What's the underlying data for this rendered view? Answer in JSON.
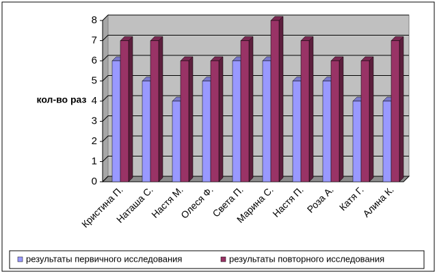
{
  "chart_data": {
    "type": "bar3d",
    "y_label": "кол-во раз",
    "categories": [
      "Кристина П.",
      "Наташа С.",
      "Настя М.",
      "Олеся Ф.",
      "Света П.",
      "Марина С.",
      "Настя П.",
      "Роза А.",
      "Катя Г.",
      "Алина К."
    ],
    "series": [
      {
        "name": "результаты первичного исследования",
        "color": "#9999ff",
        "values": [
          6,
          5,
          4,
          5,
          6,
          6,
          5,
          5,
          4,
          4
        ]
      },
      {
        "name": "результаты повторного исследования",
        "color": "#993366",
        "values": [
          7,
          7,
          6,
          6,
          7,
          8,
          7,
          6,
          6,
          7
        ]
      }
    ],
    "ylim": [
      0,
      8
    ],
    "yticks": [
      0,
      1,
      2,
      3,
      4,
      5,
      6,
      7,
      8
    ],
    "grid": true,
    "legend": "bottom"
  }
}
